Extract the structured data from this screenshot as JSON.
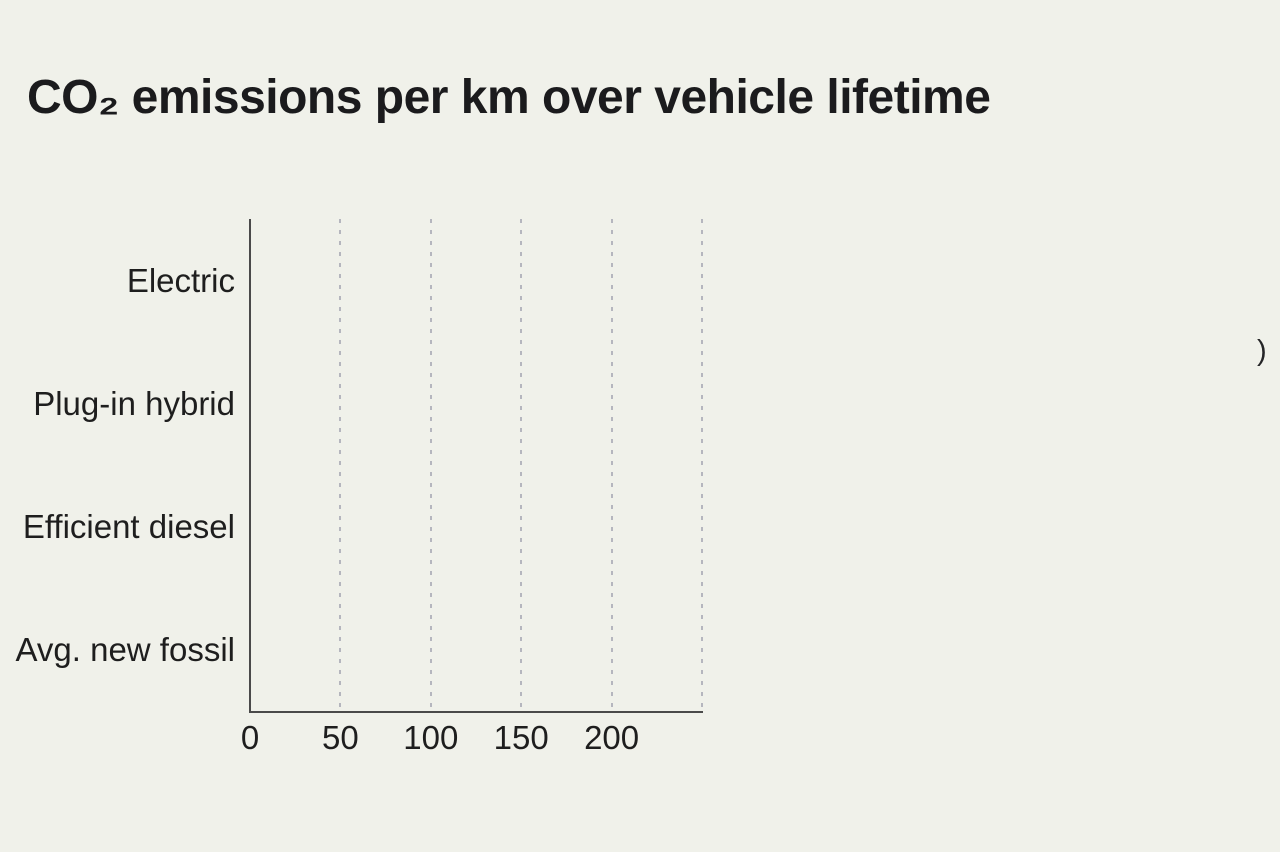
{
  "title": {
    "text": "CO₂ emissions per km over vehicle lifetime"
  },
  "stray_fragment": ")",
  "colors": {
    "background": "#f0f1ea",
    "title_text": "#1b1b1d",
    "axis_line": "#4a4a4a",
    "gridline": "#b5b6be",
    "label_text": "#1e1e1e"
  },
  "chart_data": {
    "type": "bar",
    "orientation": "horizontal",
    "title": "CO₂ emissions per km over vehicle lifetime",
    "categories": [
      "Electric",
      "Plug-in hybrid",
      "Efficient diesel",
      "Avg. new fossil"
    ],
    "values": [
      null,
      null,
      null,
      null
    ],
    "bars_rendered": false,
    "xlim": [
      0,
      250
    ],
    "x_tick_values": [
      0,
      50,
      100,
      150,
      200
    ],
    "x_tick_labels": [
      "0",
      "50",
      "100",
      "150",
      "200"
    ],
    "gridline_values": [
      50,
      100,
      150,
      200,
      250
    ],
    "grid_style": "dotted-vertical",
    "legend": "none",
    "xlabel": "",
    "ylabel": ""
  }
}
